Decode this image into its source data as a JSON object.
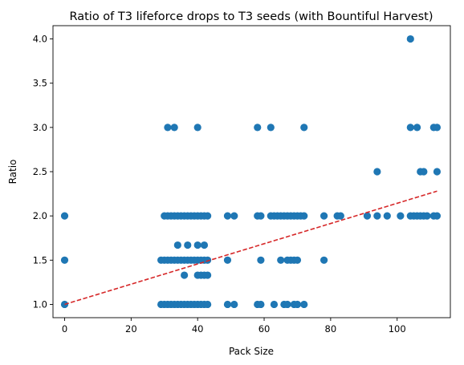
{
  "chart_data": {
    "type": "scatter",
    "title": "Ratio of T3 lifeforce drops to T3 seeds (with Bountiful Harvest)",
    "xlabel": "Pack Size",
    "ylabel": "Ratio",
    "xlim": [
      -3.5,
      116
    ],
    "ylim": [
      0.85,
      4.15
    ],
    "xticks": [
      0,
      20,
      40,
      60,
      80,
      100
    ],
    "yticks": [
      1.0,
      1.5,
      2.0,
      2.5,
      3.0,
      3.5,
      4.0
    ],
    "ytick_labels": [
      "1.0",
      "1.5",
      "2.0",
      "2.5",
      "3.0",
      "3.5",
      "4.0"
    ],
    "grid": false,
    "point_color": "#1f77b4",
    "points": [
      [
        0,
        1.0
      ],
      [
        0,
        1.5
      ],
      [
        0,
        2.0
      ],
      [
        29,
        1.0
      ],
      [
        30,
        1.0
      ],
      [
        31,
        1.0
      ],
      [
        32,
        1.0
      ],
      [
        33,
        1.0
      ],
      [
        34,
        1.0
      ],
      [
        35,
        1.0
      ],
      [
        36,
        1.0
      ],
      [
        37,
        1.0
      ],
      [
        38,
        1.0
      ],
      [
        39,
        1.0
      ],
      [
        40,
        1.0
      ],
      [
        41,
        1.0
      ],
      [
        42,
        1.0
      ],
      [
        43,
        1.0
      ],
      [
        49,
        1.0
      ],
      [
        51,
        1.0
      ],
      [
        58,
        1.0
      ],
      [
        59,
        1.0
      ],
      [
        63,
        1.0
      ],
      [
        66,
        1.0
      ],
      [
        67,
        1.0
      ],
      [
        69,
        1.0
      ],
      [
        70,
        1.0
      ],
      [
        72,
        1.0
      ],
      [
        36,
        1.33
      ],
      [
        40,
        1.33
      ],
      [
        41,
        1.33
      ],
      [
        42,
        1.33
      ],
      [
        43,
        1.33
      ],
      [
        29,
        1.5
      ],
      [
        30,
        1.5
      ],
      [
        31,
        1.5
      ],
      [
        32,
        1.5
      ],
      [
        33,
        1.5
      ],
      [
        34,
        1.5
      ],
      [
        35,
        1.5
      ],
      [
        36,
        1.5
      ],
      [
        37,
        1.5
      ],
      [
        38,
        1.5
      ],
      [
        39,
        1.5
      ],
      [
        40,
        1.5
      ],
      [
        41,
        1.5
      ],
      [
        42,
        1.5
      ],
      [
        43,
        1.5
      ],
      [
        49,
        1.5
      ],
      [
        59,
        1.5
      ],
      [
        65,
        1.5
      ],
      [
        67,
        1.5
      ],
      [
        68,
        1.5
      ],
      [
        69,
        1.5
      ],
      [
        70,
        1.5
      ],
      [
        78,
        1.5
      ],
      [
        34,
        1.67
      ],
      [
        37,
        1.67
      ],
      [
        40,
        1.67
      ],
      [
        42,
        1.67
      ],
      [
        30,
        2.0
      ],
      [
        31,
        2.0
      ],
      [
        32,
        2.0
      ],
      [
        33,
        2.0
      ],
      [
        34,
        2.0
      ],
      [
        35,
        2.0
      ],
      [
        36,
        2.0
      ],
      [
        37,
        2.0
      ],
      [
        38,
        2.0
      ],
      [
        39,
        2.0
      ],
      [
        40,
        2.0
      ],
      [
        41,
        2.0
      ],
      [
        42,
        2.0
      ],
      [
        43,
        2.0
      ],
      [
        49,
        2.0
      ],
      [
        51,
        2.0
      ],
      [
        58,
        2.0
      ],
      [
        59,
        2.0
      ],
      [
        62,
        2.0
      ],
      [
        63,
        2.0
      ],
      [
        64,
        2.0
      ],
      [
        65,
        2.0
      ],
      [
        66,
        2.0
      ],
      [
        67,
        2.0
      ],
      [
        68,
        2.0
      ],
      [
        69,
        2.0
      ],
      [
        70,
        2.0
      ],
      [
        71,
        2.0
      ],
      [
        72,
        2.0
      ],
      [
        78,
        2.0
      ],
      [
        82,
        2.0
      ],
      [
        83,
        2.0
      ],
      [
        91,
        2.0
      ],
      [
        94,
        2.0
      ],
      [
        97,
        2.0
      ],
      [
        101,
        2.0
      ],
      [
        104,
        2.0
      ],
      [
        105,
        2.0
      ],
      [
        106,
        2.0
      ],
      [
        107,
        2.0
      ],
      [
        108,
        2.0
      ],
      [
        109,
        2.0
      ],
      [
        111,
        2.0
      ],
      [
        112,
        2.0
      ],
      [
        94,
        2.5
      ],
      [
        107,
        2.5
      ],
      [
        108,
        2.5
      ],
      [
        112,
        2.5
      ],
      [
        31,
        3.0
      ],
      [
        33,
        3.0
      ],
      [
        40,
        3.0
      ],
      [
        58,
        3.0
      ],
      [
        62,
        3.0
      ],
      [
        72,
        3.0
      ],
      [
        104,
        3.0
      ],
      [
        106,
        3.0
      ],
      [
        111,
        3.0
      ],
      [
        112,
        3.0
      ],
      [
        104,
        4.0
      ]
    ],
    "trendline": {
      "x": [
        0,
        112
      ],
      "y": [
        1.0,
        2.28
      ],
      "color": "#d62728",
      "style": "dashed"
    }
  }
}
